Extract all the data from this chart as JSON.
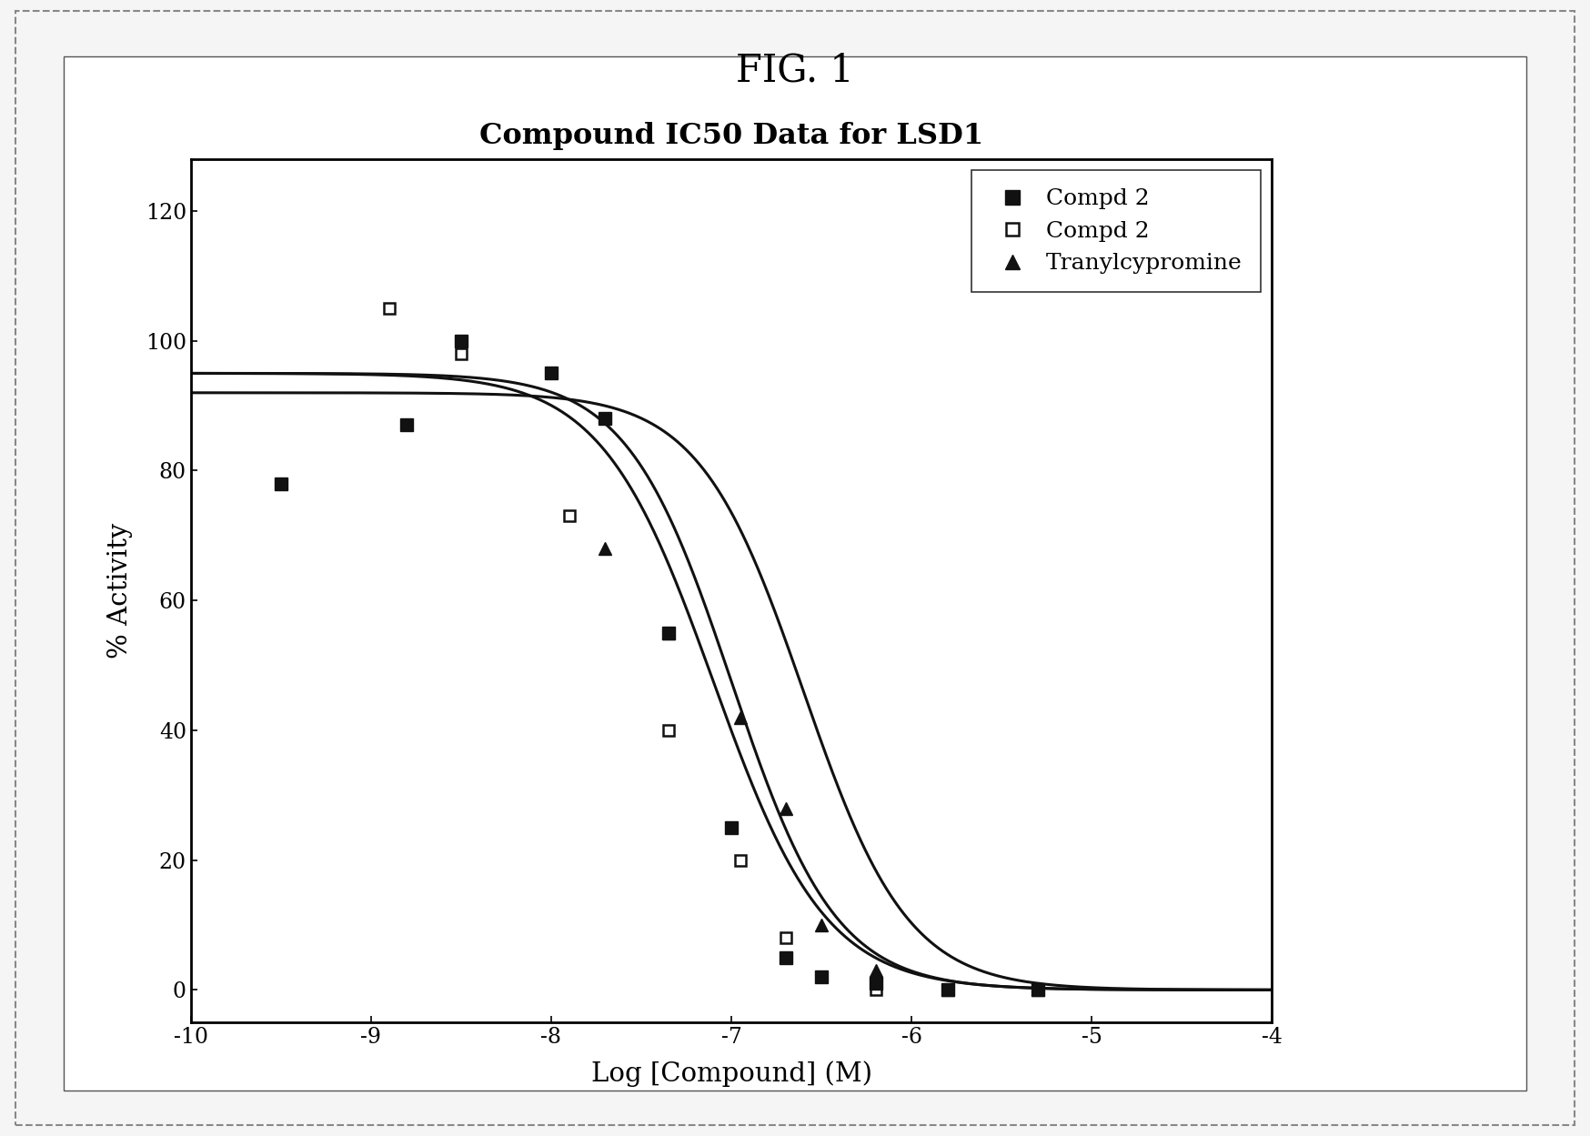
{
  "title": "Compound IC50 Data for LSD1",
  "xlabel": "Log [Compound] (M)",
  "ylabel": "% Activity",
  "fig_title": "FIG. 1",
  "xlim": [
    -10,
    -4
  ],
  "ylim": [
    -5,
    128
  ],
  "xticks": [
    -10,
    -9,
    -8,
    -7,
    -6,
    -5,
    -4
  ],
  "xtick_labels": [
    "-10",
    "-9",
    "-8",
    "-7",
    "-6",
    "-5",
    "-4"
  ],
  "yticks": [
    0,
    20,
    40,
    60,
    80,
    100,
    120
  ],
  "series": [
    {
      "name": "Compd 2",
      "marker": "s",
      "fillstyle": "full",
      "ic50_log": -7.0,
      "hill": 1.5,
      "top": 95,
      "x_data": [
        -9.5,
        -8.8,
        -8.5,
        -8.0,
        -7.7,
        -7.35,
        -7.0,
        -6.7,
        -6.5,
        -6.2,
        -5.8,
        -5.3
      ],
      "y_data": [
        78,
        87,
        100,
        95,
        88,
        55,
        25,
        5,
        2,
        1,
        0,
        0
      ]
    },
    {
      "name": "Compd 2",
      "marker": "s",
      "fillstyle": "none",
      "ic50_log": -7.1,
      "hill": 1.4,
      "top": 95,
      "x_data": [
        -8.9,
        -8.5,
        -7.9,
        -7.35,
        -6.95,
        -6.7,
        -6.5,
        -6.2,
        -5.8
      ],
      "y_data": [
        105,
        98,
        73,
        40,
        20,
        8,
        2,
        0,
        0
      ]
    },
    {
      "name": "Tranylcypromine",
      "marker": "^",
      "fillstyle": "full",
      "ic50_log": -6.6,
      "hill": 1.5,
      "top": 92,
      "x_data": [
        -7.7,
        -7.35,
        -6.95,
        -6.7,
        -6.5,
        -6.2,
        -5.8,
        -5.3
      ],
      "y_data": [
        68,
        55,
        42,
        28,
        10,
        3,
        0,
        0
      ]
    }
  ],
  "background_color": "#f0f0f0",
  "plot_bg_color": "#ffffff",
  "border_color": "#000000",
  "outer_border_color": "#888888",
  "outer_border_style": "dashed"
}
